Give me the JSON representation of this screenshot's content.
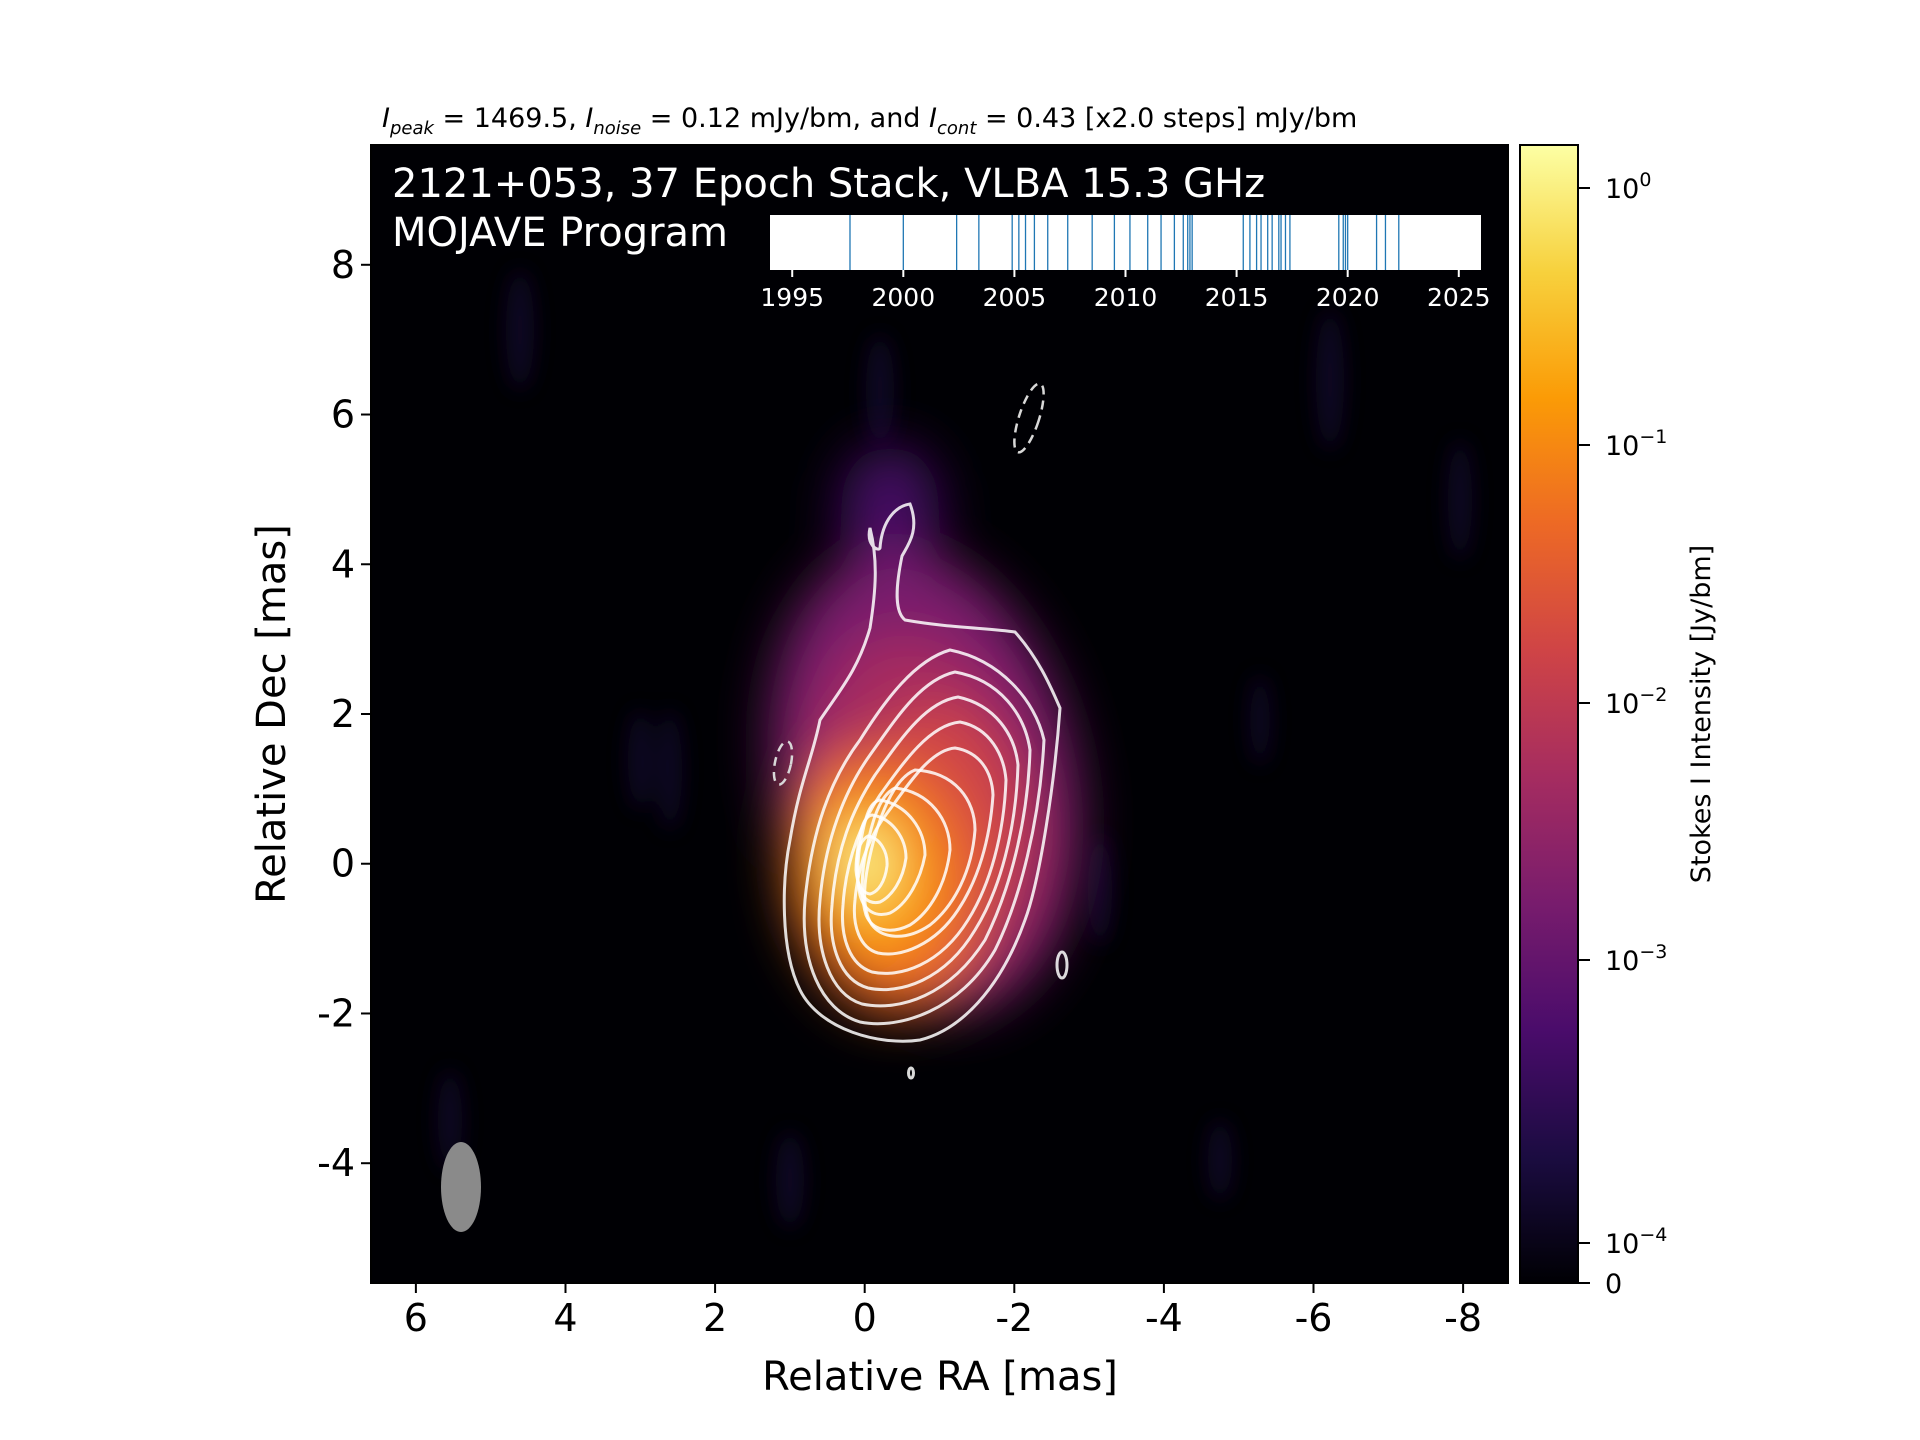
{
  "figure": {
    "header_parts": {
      "i_peak_var": "I",
      "i_peak_sub": "peak",
      "i_peak_rest": " = 1469.5, ",
      "i_noise_var": "I",
      "i_noise_sub": "noise",
      "i_noise_rest": " = 0.12 mJy/bm, and ",
      "i_cont_var": "I",
      "i_cont_sub": "cont",
      "i_cont_rest": " = 0.43 [x2.0 steps] mJy/bm"
    },
    "title_line1": "2121+053, 37 Epoch Stack, VLBA 15.3 GHz",
    "title_line2": "MOJAVE Program"
  },
  "chart_data": {
    "type": "heatmap",
    "source": "2121+053",
    "epochs": 37,
    "frequency": "15.3 GHz",
    "xlabel": "Relative RA [mas]",
    "ylabel": "Relative Dec [mas]",
    "xlim": [
      6.6,
      -8.6
    ],
    "ylim": [
      -5.6,
      9.6
    ],
    "x_ticks": [
      6,
      4,
      2,
      0,
      -2,
      -4,
      -6,
      -8
    ],
    "y_ticks": [
      -4,
      -2,
      0,
      2,
      4,
      6,
      8
    ],
    "i_peak": "1469.5",
    "i_noise_mjy_bm": 0.12,
    "i_cont_mjy_bm": 0.43,
    "contour_step_factor": 2.0,
    "peak_position_mas": [
      0.0,
      0.0
    ],
    "beam": {
      "ra_center": 5.35,
      "dec_center": -4.45,
      "major_mas": 1.2,
      "minor_mas": 0.52,
      "pa_deg": -5
    },
    "colorbar": {
      "label": "Stokes I Intensity [Jy/bm]",
      "scale": "log",
      "tick_exponents": [
        0,
        -1,
        -2,
        -3,
        -4
      ],
      "tick_base": "10",
      "zero_label": "0",
      "colormap": "inferno",
      "colors": [
        "#000004",
        "#1b0c41",
        "#4a0c6b",
        "#781c6d",
        "#a52c60",
        "#cf4446",
        "#ed6925",
        "#fb9b06",
        "#f7d13d",
        "#fcffa4"
      ]
    },
    "epoch_years": [
      1997.6,
      2000.0,
      2002.4,
      2003.4,
      2004.9,
      2005.2,
      2005.5,
      2005.9,
      2006.5,
      2007.4,
      2008.5,
      2009.5,
      2010.2,
      2011.0,
      2011.6,
      2012.2,
      2012.6,
      2012.8,
      2012.9,
      2013.0,
      2015.3,
      2015.6,
      2015.9,
      2016.1,
      2016.4,
      2016.6,
      2016.9,
      2017.0,
      2017.2,
      2017.4,
      2019.6,
      2019.8,
      2019.9,
      2020.0,
      2021.3,
      2021.7,
      2022.3
    ],
    "epoch_axis": {
      "xlim": [
        1994.0,
        2026.0
      ],
      "ticks": [
        1995,
        2000,
        2005,
        2010,
        2015,
        2020,
        2025
      ]
    },
    "annotations": [
      "dashed negative contours near (-2.3, 5.9) and (1.0, 1.3)"
    ]
  }
}
